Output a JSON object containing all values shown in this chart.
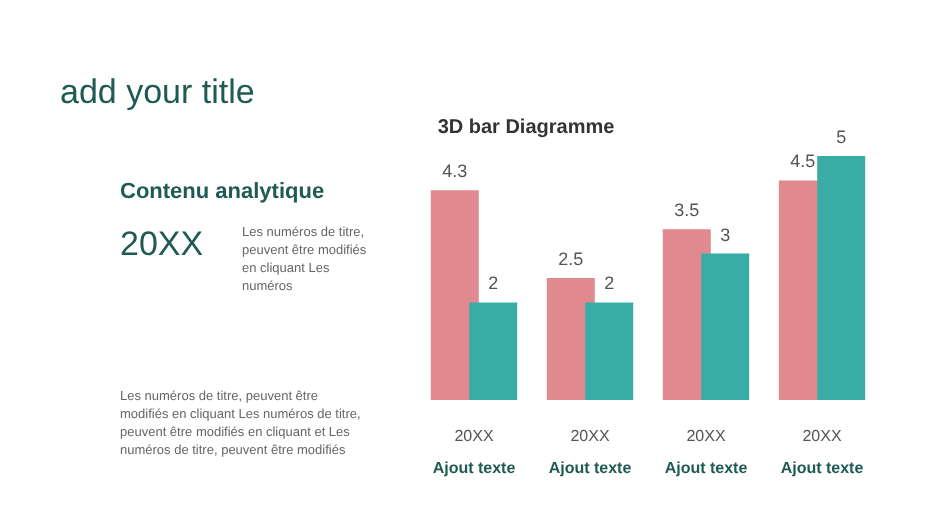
{
  "chart_data": {
    "type": "bar",
    "title": "3D bar Diagramme",
    "categories": [
      "20XX\nAjout texte",
      "20XX\nAjout texte",
      "20XX\nAjout texte",
      "20XX\nAjout texte"
    ],
    "series": [
      {
        "color": "#e0898f",
        "values": [
          4.3,
          2.5,
          3.5,
          4.5
        ]
      },
      {
        "color": "#3aaca6",
        "values": [
          2,
          2,
          3,
          5
        ]
      }
    ],
    "data_labels": true,
    "annotations": [
      "add your title",
      "Contenu analytique",
      "20XX",
      "Les numéros de titre, peuvent être modifiés en cliquant Les numéros",
      "Les numéros de titre, peuvent être modifiés en cliquant Les numéros de titre, peuvent être modifiés en cliquant et Les numéros de titre, peuvent être modifiés"
    ]
  }
}
